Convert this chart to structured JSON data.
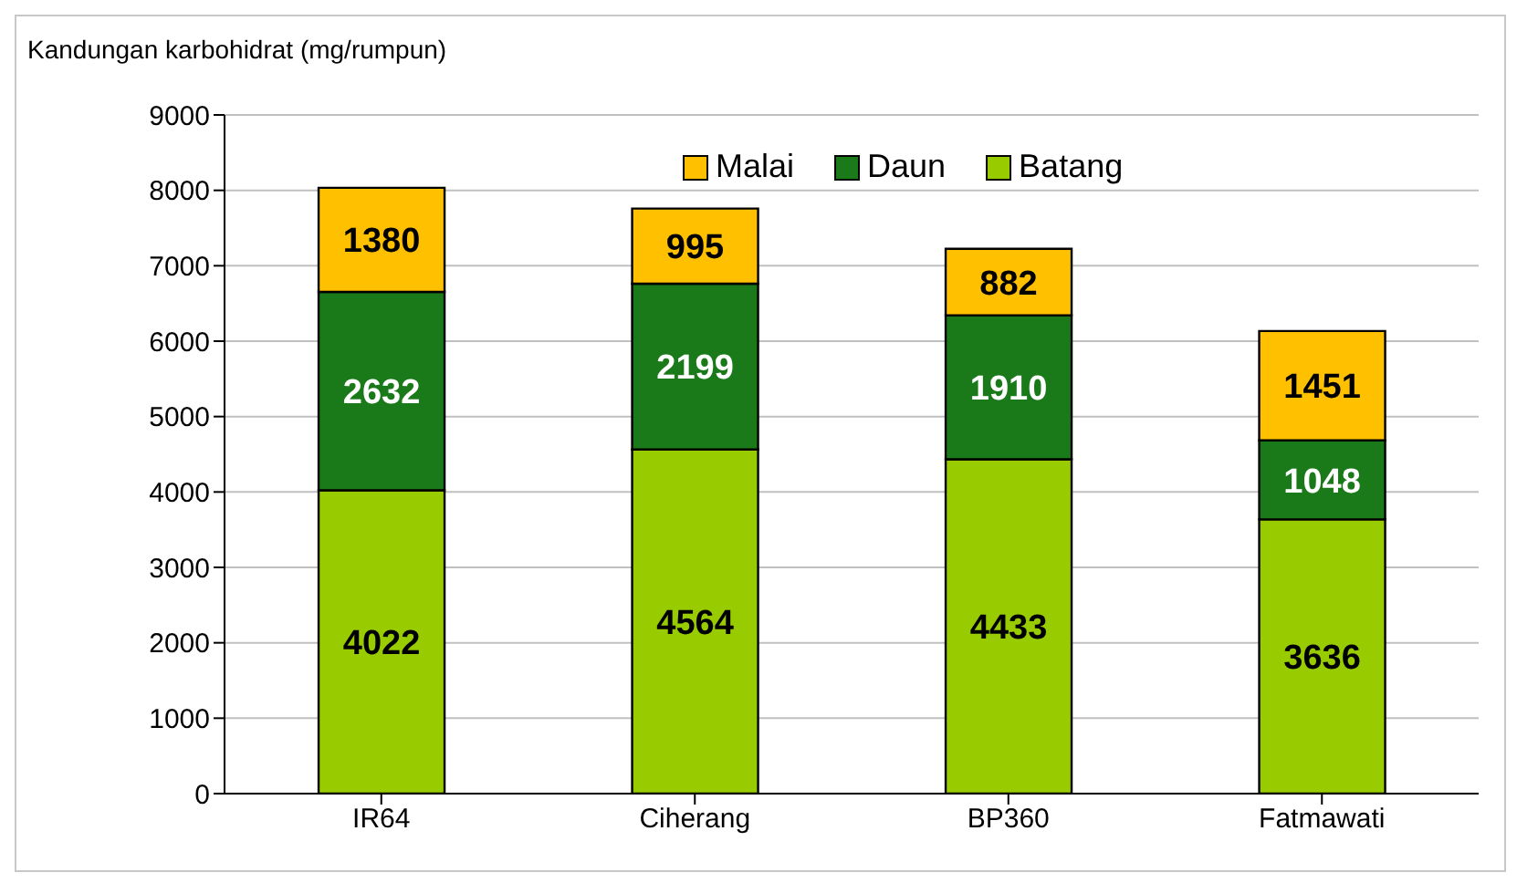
{
  "chart_data": {
    "type": "bar",
    "title": "Kandungan karbohidrat (mg/rumpun)",
    "categories": [
      "IR64",
      "Ciherang",
      "BP360",
      "Fatmawati"
    ],
    "stacked": true,
    "series": [
      {
        "name": "Batang",
        "color": "#99cc00",
        "values": [
          4022,
          4564,
          4433,
          3636
        ]
      },
      {
        "name": "Daun",
        "color": "#1a7a1a",
        "values": [
          2632,
          2199,
          1910,
          1048
        ]
      },
      {
        "name": "Malai",
        "color": "#ffc000",
        "values": [
          1380,
          995,
          882,
          1451
        ]
      }
    ],
    "ylim": [
      0,
      9000
    ],
    "yticks": [
      0,
      1000,
      2000,
      3000,
      4000,
      5000,
      6000,
      7000,
      8000,
      9000
    ],
    "grid": "y",
    "legend": "top",
    "data_labels": true
  }
}
